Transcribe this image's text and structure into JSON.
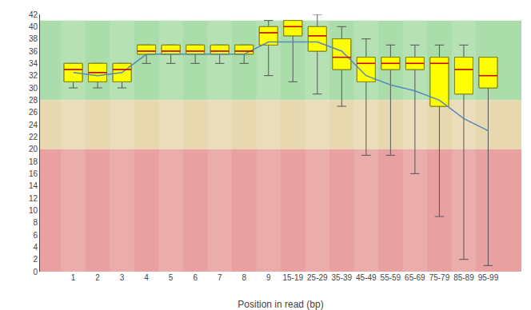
{
  "chart_data": {
    "type": "box",
    "xlabel": "Position in read (bp)",
    "categories": [
      "1",
      "2",
      "3",
      "4",
      "5",
      "6",
      "7",
      "8",
      "9",
      "15-19",
      "25-29",
      "35-39",
      "45-49",
      "55-59",
      "65-69",
      "75-79",
      "85-89",
      "95-99"
    ],
    "q1": [
      31,
      31,
      31,
      35.5,
      35.5,
      35.5,
      35.5,
      35.5,
      37,
      38.5,
      36,
      33,
      31,
      33,
      33,
      27,
      29,
      30
    ],
    "q3": [
      34,
      34,
      34,
      37,
      37,
      37,
      37,
      37,
      40,
      41,
      40,
      38,
      35,
      35,
      35,
      35,
      35,
      35
    ],
    "median": [
      33,
      32.5,
      33,
      36,
      36,
      36,
      36,
      36,
      39,
      40,
      38.5,
      35,
      34,
      34,
      34,
      34,
      33,
      32
    ],
    "whisker_low": [
      30,
      30,
      30,
      34,
      34,
      34,
      34,
      34,
      32,
      31,
      29,
      27,
      19,
      19,
      16,
      9,
      2,
      1
    ],
    "whisker_high": [
      34,
      34,
      34,
      37,
      37,
      37,
      37,
      37,
      41,
      41,
      42,
      40,
      38,
      37,
      37,
      37,
      37,
      35
    ],
    "mean_values": [
      32.5,
      32,
      32.5,
      35.5,
      35.5,
      35.5,
      35.5,
      35.5,
      37.5,
      37.5,
      37.5,
      36,
      32,
      30.5,
      29.5,
      28,
      25,
      23
    ],
    "mean_color": "#5588bb",
    "box_color": "#ffff00",
    "box_edge_color": "#888800",
    "median_color": "#cc0000",
    "whisker_color": "#555555",
    "bands": [
      {
        "from": 28,
        "to": 41,
        "color": "#aaddaa"
      },
      {
        "from": 20,
        "to": 28,
        "color": "#e8d8b0"
      },
      {
        "from": 0,
        "to": 20,
        "color": "#e8a0a0"
      }
    ],
    "ylim": [
      0,
      42
    ],
    "yticks": [
      0,
      2,
      4,
      6,
      8,
      10,
      12,
      14,
      16,
      18,
      20,
      22,
      24,
      26,
      28,
      30,
      32,
      34,
      36,
      38,
      40,
      42
    ],
    "grid": false
  }
}
